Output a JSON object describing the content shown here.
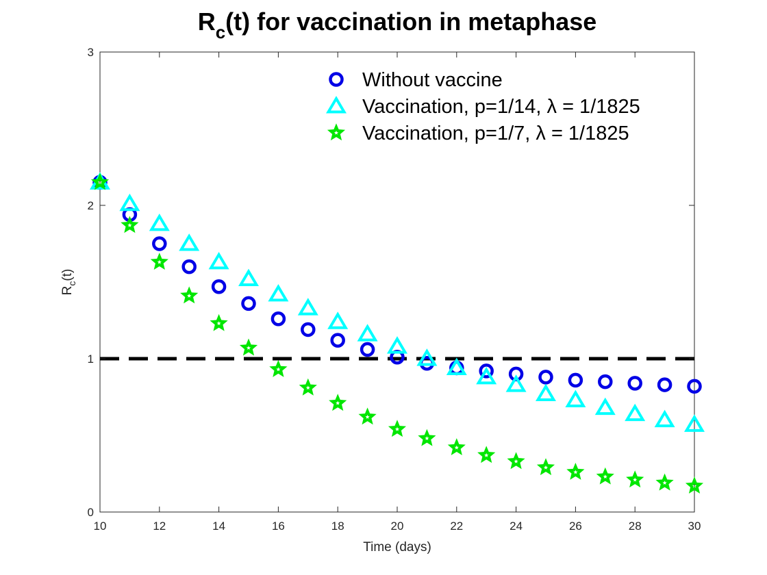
{
  "chart_data": {
    "type": "scatter",
    "title": {
      "main": "R",
      "sub": "c",
      "rest": "(t) for vaccination in metaphase"
    },
    "xlabel": "Time (days)",
    "ylabel": {
      "main": "R",
      "sub": "c",
      "rest": "(t)"
    },
    "xlim": [
      10,
      30
    ],
    "ylim": [
      0,
      3
    ],
    "xticks": [
      10,
      12,
      14,
      16,
      18,
      20,
      22,
      24,
      26,
      28,
      30
    ],
    "yticks": [
      0,
      1,
      2,
      3
    ],
    "grid": false,
    "legend_position": "top-right",
    "reference_line": {
      "y": 1,
      "color": "#000000",
      "style": "dashed"
    },
    "x": [
      10,
      11,
      12,
      13,
      14,
      15,
      16,
      17,
      18,
      19,
      20,
      21,
      22,
      23,
      24,
      25,
      26,
      27,
      28,
      29,
      30
    ],
    "series": [
      {
        "name": "Without vaccine",
        "marker": "circle",
        "color": "#0000e6",
        "values": [
          2.15,
          1.94,
          1.75,
          1.6,
          1.47,
          1.36,
          1.26,
          1.19,
          1.12,
          1.06,
          1.01,
          0.97,
          0.94,
          0.92,
          0.9,
          0.88,
          0.86,
          0.85,
          0.84,
          0.83,
          0.82
        ]
      },
      {
        "name": "Vaccination, p=1/14, λ = 1/1825",
        "marker": "triangle",
        "color": "#00ffff",
        "values": [
          2.15,
          2.01,
          1.88,
          1.75,
          1.63,
          1.52,
          1.42,
          1.33,
          1.24,
          1.16,
          1.08,
          1.0,
          0.94,
          0.88,
          0.83,
          0.77,
          0.73,
          0.68,
          0.64,
          0.6,
          0.57
        ]
      },
      {
        "name": "Vaccination, p=1/7, λ = 1/1825",
        "marker": "star",
        "color": "#00e600",
        "values": [
          2.15,
          1.87,
          1.63,
          1.41,
          1.23,
          1.07,
          0.93,
          0.81,
          0.71,
          0.62,
          0.54,
          0.48,
          0.42,
          0.37,
          0.33,
          0.29,
          0.26,
          0.23,
          0.21,
          0.19,
          0.17
        ]
      }
    ]
  }
}
